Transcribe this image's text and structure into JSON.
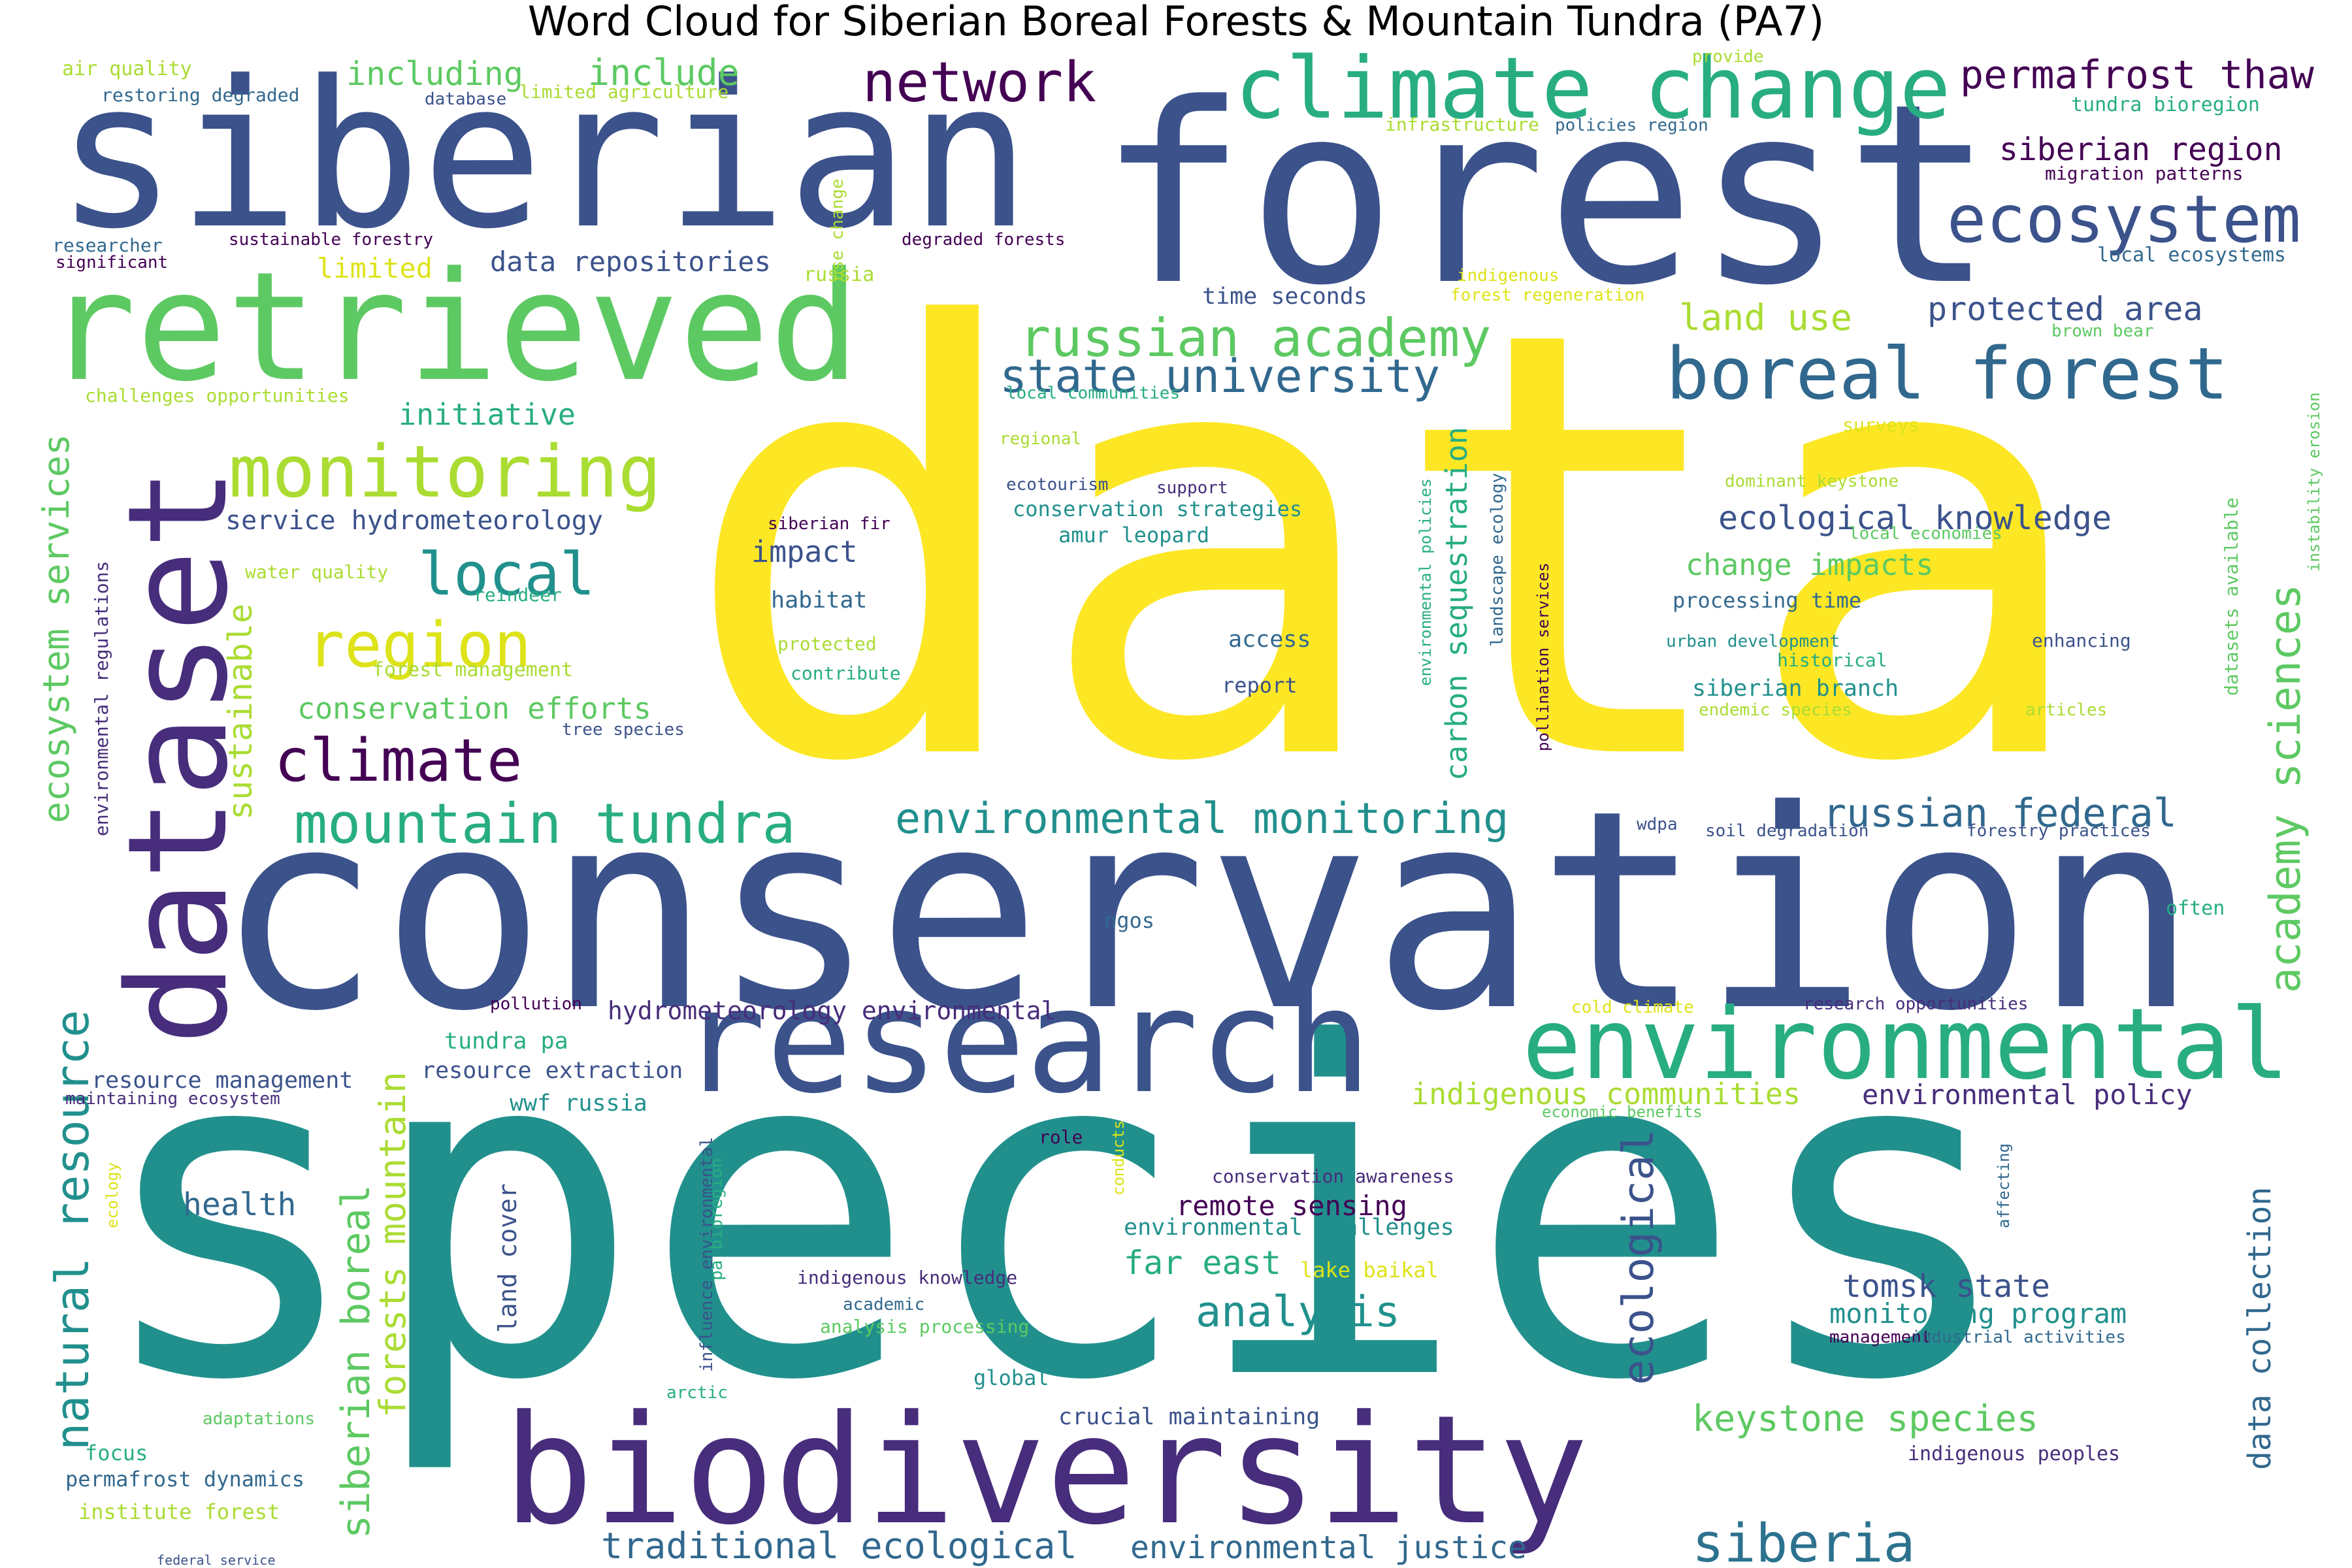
{
  "title": "Word Cloud for Siberian Boreal Forests & Mountain Tundra (PA7)",
  "palette": [
    "#440154",
    "#3b528b",
    "#21908d",
    "#5dc962",
    "#fde725"
  ],
  "words": [
    {
      "text": "data",
      "c": "#fde725"
    },
    {
      "text": "species",
      "c": "#21908d"
    },
    {
      "text": "conservation",
      "c": "#3b528b"
    },
    {
      "text": "forest",
      "c": "#3b528b"
    },
    {
      "text": "siberian",
      "c": "#3b528b"
    },
    {
      "text": "retrieved",
      "c": "#5dc962"
    },
    {
      "text": "biodiversity",
      "c": "#472d7b"
    },
    {
      "text": "research",
      "c": "#3b528b"
    },
    {
      "text": "siberia",
      "c": "#2c728e"
    },
    {
      "text": "dataset",
      "c": "#472d7b"
    },
    {
      "text": "environmental",
      "c": "#27ad81"
    },
    {
      "text": "climate change",
      "c": "#27ad81"
    },
    {
      "text": "boreal forest",
      "c": "#31688e"
    },
    {
      "text": "monitoring",
      "c": "#aadc32"
    },
    {
      "text": "ecosystem",
      "c": "#3b528b"
    },
    {
      "text": "network",
      "c": "#440154"
    },
    {
      "text": "climate",
      "c": "#440154"
    },
    {
      "text": "mountain tundra",
      "c": "#27ad81"
    },
    {
      "text": "region",
      "c": "#dde318"
    },
    {
      "text": "local",
      "c": "#21908d"
    },
    {
      "text": "russian academy",
      "c": "#5dc962"
    },
    {
      "text": "state university",
      "c": "#31688e"
    },
    {
      "text": "natural resource",
      "c": "#21908d"
    },
    {
      "text": "ecosystem services",
      "c": "#5dc962"
    },
    {
      "text": "academy sciences",
      "c": "#5dc962"
    },
    {
      "text": "environmental monitoring",
      "c": "#21908d"
    },
    {
      "text": "russian federal",
      "c": "#31688e"
    },
    {
      "text": "permafrost thaw",
      "c": "#440154"
    },
    {
      "text": "including",
      "c": "#5dc962"
    },
    {
      "text": "include",
      "c": "#5dc962"
    },
    {
      "text": "siberian region",
      "c": "#440154"
    },
    {
      "text": "protected area",
      "c": "#3b528b"
    },
    {
      "text": "land use",
      "c": "#aadc32"
    },
    {
      "text": "ecological knowledge",
      "c": "#3b528b"
    },
    {
      "text": "change impacts",
      "c": "#5dc962"
    },
    {
      "text": "keystone species",
      "c": "#5dc962"
    },
    {
      "text": "tomsk state",
      "c": "#3b528b"
    },
    {
      "text": "monitoring program",
      "c": "#21908d"
    },
    {
      "text": "federal service",
      "c": "#3b528b"
    },
    {
      "text": "traditional ecological",
      "c": "#31688e"
    },
    {
      "text": "environmental justice",
      "c": "#31688e"
    },
    {
      "text": "analysis",
      "c": "#21908d"
    },
    {
      "text": "far east",
      "c": "#27ad81"
    },
    {
      "text": "remote sensing",
      "c": "#440154"
    },
    {
      "text": "health",
      "c": "#31688e"
    },
    {
      "text": "indigenous communities",
      "c": "#aadc32"
    },
    {
      "text": "environmental policy",
      "c": "#472d7b"
    },
    {
      "text": "conservation efforts",
      "c": "#5dc962"
    },
    {
      "text": "initiative",
      "c": "#27ad81"
    },
    {
      "text": "service hydrometeorology",
      "c": "#3b528b"
    },
    {
      "text": "impact",
      "c": "#3b528b"
    },
    {
      "text": "data repositories",
      "c": "#3b528b"
    },
    {
      "text": "limited",
      "c": "#dde318"
    },
    {
      "text": "hydrometeorology environmental",
      "c": "#472d7b"
    },
    {
      "text": "tundra pa",
      "c": "#27ad81"
    },
    {
      "text": "resource extraction",
      "c": "#3b528b"
    },
    {
      "text": "resource management",
      "c": "#3b528b"
    },
    {
      "text": "wwf russia",
      "c": "#21908d"
    },
    {
      "text": "ecological",
      "c": "#3b528b"
    },
    {
      "text": "siberian boreal",
      "c": "#5dc962"
    },
    {
      "text": "forests mountain",
      "c": "#aadc32"
    },
    {
      "text": "sustainable",
      "c": "#aadc32"
    },
    {
      "text": "data collection",
      "c": "#31688e"
    },
    {
      "text": "carbon sequestration",
      "c": "#27ad81"
    },
    {
      "text": "land cover",
      "c": "#3b528b"
    },
    {
      "text": "environmental challenges",
      "c": "#21908d"
    },
    {
      "text": "conservation awareness",
      "c": "#472d7b"
    },
    {
      "text": "indigenous knowledge",
      "c": "#472d7b"
    },
    {
      "text": "crucial maintaining",
      "c": "#3b528b"
    },
    {
      "text": "global",
      "c": "#21908d"
    },
    {
      "text": "permafrost dynamics",
      "c": "#31688e"
    },
    {
      "text": "institute forest",
      "c": "#aadc32"
    },
    {
      "text": "focus",
      "c": "#27ad81"
    },
    {
      "text": "indigenous peoples",
      "c": "#472d7b"
    },
    {
      "text": "siberian branch",
      "c": "#21908d"
    },
    {
      "text": "processing time",
      "c": "#31688e"
    },
    {
      "text": "conservation strategies",
      "c": "#21908d"
    },
    {
      "text": "amur leopard",
      "c": "#21908d"
    },
    {
      "text": "habitat",
      "c": "#31688e"
    },
    {
      "text": "access",
      "c": "#31688e"
    },
    {
      "text": "report",
      "c": "#3b528b"
    },
    {
      "text": "time seconds",
      "c": "#3b528b"
    },
    {
      "text": "local ecosystems",
      "c": "#31688e"
    },
    {
      "text": "migration patterns",
      "c": "#440154"
    },
    {
      "text": "tundra bioregion",
      "c": "#27ad81"
    },
    {
      "text": "air quality",
      "c": "#aadc32"
    },
    {
      "text": "restoring degraded",
      "c": "#31688e"
    },
    {
      "text": "limited agriculture",
      "c": "#aadc32"
    },
    {
      "text": "database",
      "c": "#3b528b"
    },
    {
      "text": "infrastructure",
      "c": "#aadc32"
    },
    {
      "text": "policies region",
      "c": "#31688e"
    },
    {
      "text": "provide",
      "c": "#aadc32"
    },
    {
      "text": "researcher",
      "c": "#31688e"
    },
    {
      "text": "sustainable forestry",
      "c": "#440154"
    },
    {
      "text": "significant",
      "c": "#440154"
    },
    {
      "text": "degraded forests",
      "c": "#440154"
    },
    {
      "text": "russia",
      "c": "#aadc32"
    },
    {
      "text": "indigenous",
      "c": "#dde318"
    },
    {
      "text": "forest regeneration",
      "c": "#dde318"
    },
    {
      "text": "brown bear",
      "c": "#5dc962"
    },
    {
      "text": "challenges opportunities",
      "c": "#aadc32"
    },
    {
      "text": "local communities",
      "c": "#27ad81"
    },
    {
      "text": "regional",
      "c": "#aadc32"
    },
    {
      "text": "surveys",
      "c": "#dde318"
    },
    {
      "text": "ecotourism",
      "c": "#3b528b"
    },
    {
      "text": "support",
      "c": "#472d7b"
    },
    {
      "text": "siberian fir",
      "c": "#440154"
    },
    {
      "text": "dominant keystone",
      "c": "#aadc32"
    },
    {
      "text": "local economies",
      "c": "#5dc962"
    },
    {
      "text": "water quality",
      "c": "#aadc32"
    },
    {
      "text": "reindeer",
      "c": "#27ad81"
    },
    {
      "text": "forest management",
      "c": "#aadc32"
    },
    {
      "text": "tree species",
      "c": "#3b528b"
    },
    {
      "text": "protected",
      "c": "#aadc32"
    },
    {
      "text": "contribute",
      "c": "#27ad81"
    },
    {
      "text": "urban development",
      "c": "#21908d"
    },
    {
      "text": "enhancing",
      "c": "#3b528b"
    },
    {
      "text": "historical",
      "c": "#27ad81"
    },
    {
      "text": "endemic species",
      "c": "#aadc32"
    },
    {
      "text": "articles",
      "c": "#aadc32"
    },
    {
      "text": "wdpa",
      "c": "#3b528b"
    },
    {
      "text": "soil degradation",
      "c": "#3b528b"
    },
    {
      "text": "forestry practices",
      "c": "#3b528b"
    },
    {
      "text": "often",
      "c": "#27ad81"
    },
    {
      "text": "ngos",
      "c": "#31688e"
    },
    {
      "text": "pollution",
      "c": "#440154"
    },
    {
      "text": "cold climate",
      "c": "#dde318"
    },
    {
      "text": "research opportunities",
      "c": "#472d7b"
    },
    {
      "text": "maintaining ecosystem",
      "c": "#472d7b"
    },
    {
      "text": "economic benefits",
      "c": "#5dc962"
    },
    {
      "text": "role",
      "c": "#440154"
    },
    {
      "text": "lake baikal",
      "c": "#dde318"
    },
    {
      "text": "academic",
      "c": "#31688e"
    },
    {
      "text": "analysis processing",
      "c": "#5dc962"
    },
    {
      "text": "arctic",
      "c": "#27ad81"
    },
    {
      "text": "adaptations",
      "c": "#5dc962"
    },
    {
      "text": "management",
      "c": "#440154"
    },
    {
      "text": "industrial activities",
      "c": "#31688e"
    },
    {
      "text": "use change",
      "c": "#aadc32"
    },
    {
      "text": "environmental regulations",
      "c": "#472d7b"
    },
    {
      "text": "environmental policies",
      "c": "#27ad81"
    },
    {
      "text": "landscape ecology",
      "c": "#31688e"
    },
    {
      "text": "pollination services",
      "c": "#440154"
    },
    {
      "text": "datasets available",
      "c": "#5dc962"
    },
    {
      "text": "instability erosion",
      "c": "#5dc962"
    },
    {
      "text": "influence environmental",
      "c": "#3b528b"
    },
    {
      "text": "pa bioregion",
      "c": "#27ad81"
    },
    {
      "text": "conducts",
      "c": "#dde318"
    },
    {
      "text": "ecology",
      "c": "#dde318"
    },
    {
      "text": "affecting",
      "c": "#31688e"
    }
  ]
}
